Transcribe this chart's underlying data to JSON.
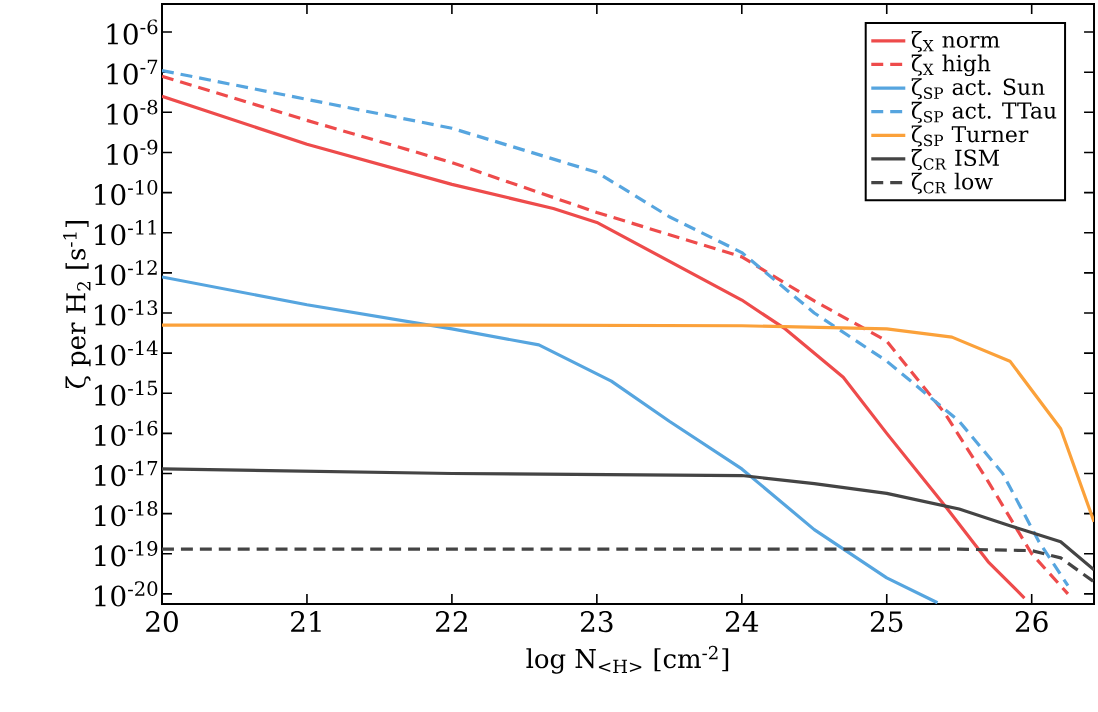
{
  "chart_data": {
    "type": "line",
    "xlabel": "log N$_{<H>}$ [cm$^{-2}$]",
    "ylabel": "ζ per H$_{2}$ [s$^{-1}$]",
    "log": "y",
    "grid": false,
    "legend": "top right",
    "marker": "none",
    "xlim": [
      20,
      26.43
    ],
    "xticks": [
      20,
      21,
      22,
      23,
      24,
      25,
      26
    ],
    "ylim": [
      5.6e-21,
      5e-06
    ],
    "yticks": [
      {
        "value": 1e-06,
        "label": "10$^{-6}$"
      },
      {
        "value": 1e-07,
        "label": "10$^{-7}$"
      },
      {
        "value": 1e-08,
        "label": "10$^{-8}$"
      },
      {
        "value": 1e-09,
        "label": "10$^{-9}$"
      },
      {
        "value": 1e-10,
        "label": "10$^{-10}$"
      },
      {
        "value": 1e-11,
        "label": "10$^{-11}$"
      },
      {
        "value": 1e-12,
        "label": "10$^{-12}$"
      },
      {
        "value": 1e-13,
        "label": "10$^{-13}$"
      },
      {
        "value": 1e-14,
        "label": "10$^{-14}$"
      },
      {
        "value": 1e-15,
        "label": "10$^{-15}$"
      },
      {
        "value": 1e-16,
        "label": "10$^{-16}$"
      },
      {
        "value": 1e-17,
        "label": "10$^{-17}$"
      },
      {
        "value": 1e-18,
        "label": "10$^{-18}$"
      },
      {
        "value": 1e-19,
        "label": "10$^{-19}$"
      },
      {
        "value": 1e-20,
        "label": "10$^{-20}$"
      }
    ],
    "series": [
      {
        "name": "ζ$_{X}$ norm",
        "color": "#ee4b4b",
        "line_style": "solid",
        "x": [
          20,
          21,
          22,
          22.7,
          23,
          24,
          24.3,
          24.7,
          25,
          25.4,
          25.7,
          25.95
        ],
        "values": [
          2.5e-08,
          1.6e-09,
          1.6e-10,
          4e-11,
          1.8e-11,
          2.1e-13,
          4e-14,
          2.5e-15,
          1e-16,
          1.6e-18,
          6.3e-20,
          7.9e-21
        ]
      },
      {
        "name": "ζ$_{X}$ high",
        "color": "#ee4b4b",
        "line_style": "dashed",
        "x": [
          20,
          21,
          22,
          23,
          24,
          24.5,
          25,
          25.4,
          25.7,
          26,
          26.25
        ],
        "values": [
          7.9e-08,
          6.3e-09,
          5.6e-10,
          3.2e-11,
          2.5e-12,
          2e-13,
          2e-14,
          3.2e-16,
          6.3e-18,
          1e-19,
          1e-20
        ]
      },
      {
        "name": "ζ$_{SP}$ act. Sun",
        "color": "#56a5df",
        "line_style": "solid",
        "x": [
          20,
          21,
          22,
          22.6,
          23.1,
          23.5,
          24,
          24.5,
          25,
          25.35
        ],
        "values": [
          7.9e-13,
          1.6e-13,
          4e-14,
          1.6e-14,
          2e-15,
          2e-16,
          1.3e-17,
          4e-19,
          2.5e-20,
          6e-21
        ]
      },
      {
        "name": "ζ$_{SP}$ act. TTau",
        "color": "#56a5df",
        "line_style": "dashed",
        "x": [
          20,
          21,
          22,
          23,
          23.5,
          24,
          24.5,
          25,
          25.5,
          25.8,
          26.05,
          26.25
        ],
        "values": [
          1.1e-07,
          2.1e-08,
          4e-09,
          3.2e-10,
          2.5e-11,
          3.2e-12,
          1e-13,
          6.3e-15,
          2e-16,
          1e-17,
          2e-19,
          1.6e-20
        ]
      },
      {
        "name": "ζ$_{SP}$ Turner",
        "color": "#fba13a",
        "line_style": "solid",
        "x": [
          20,
          22,
          24,
          25,
          25.45,
          25.85,
          26.2,
          26.43
        ],
        "values": [
          5e-14,
          5e-14,
          4.8e-14,
          4e-14,
          2.5e-14,
          6.3e-15,
          1.3e-16,
          6.3e-19
        ]
      },
      {
        "name": "ζ$_{CR}$ ISM",
        "color": "#444444",
        "line_style": "solid",
        "x": [
          20,
          22,
          24,
          24.5,
          25,
          25.5,
          25.85,
          26.2,
          26.43
        ],
        "values": [
          1.3e-17,
          1e-17,
          8.9e-18,
          5.6e-18,
          3.2e-18,
          1.3e-18,
          5e-19,
          2e-19,
          4e-20
        ]
      },
      {
        "name": "ζ$_{CR}$ low",
        "color": "#444444",
        "line_style": "dashed",
        "x": [
          20,
          25.5,
          26,
          26.2,
          26.43
        ],
        "values": [
          1.3e-19,
          1.3e-19,
          1.2e-19,
          7.9e-20,
          2e-20
        ]
      }
    ]
  }
}
